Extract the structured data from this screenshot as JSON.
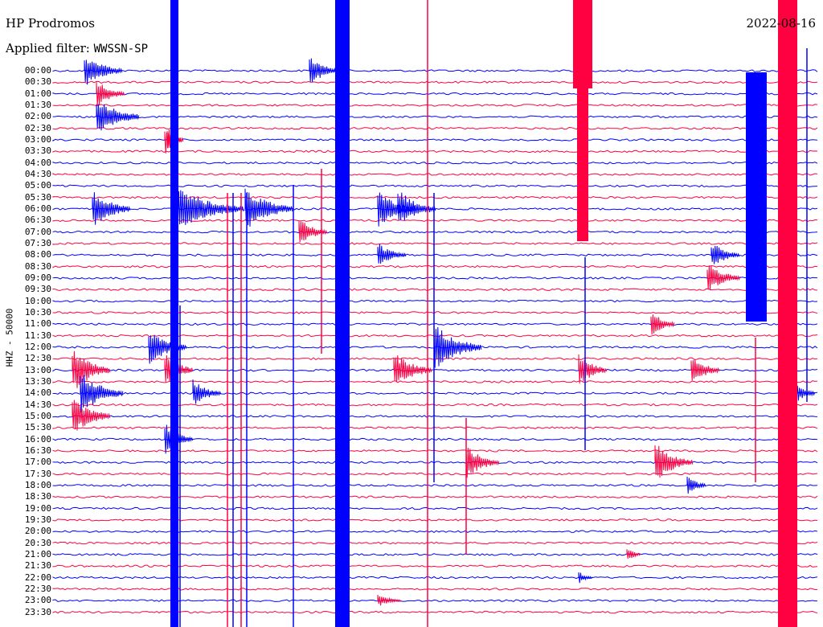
{
  "header": {
    "station": "HP Prodromos",
    "filter_label": "Applied filter:",
    "filter_value": "WWSSN-SP",
    "date": "2022-08-16",
    "channel": "HHZ - 50000"
  },
  "colors": {
    "trace_a": "#0000ff",
    "trace_b": "#ff0040",
    "text": "#000000"
  },
  "chart_data": {
    "type": "line",
    "title": "HP Prodromos",
    "ylabel": "HHZ - 50000",
    "row_labels": [
      "00:00",
      "00:30",
      "01:00",
      "01:30",
      "02:00",
      "02:30",
      "03:00",
      "03:30",
      "04:00",
      "04:30",
      "05:00",
      "05:30",
      "06:00",
      "06:30",
      "07:00",
      "07:30",
      "08:00",
      "08:30",
      "09:00",
      "09:30",
      "10:00",
      "10:30",
      "11:00",
      "11:30",
      "12:00",
      "12:30",
      "13:00",
      "13:30",
      "14:00",
      "14:30",
      "15:00",
      "15:30",
      "16:00",
      "16:30",
      "17:00",
      "17:30",
      "18:00",
      "18:30",
      "19:00",
      "19:30",
      "20:00",
      "20:30",
      "21:00",
      "21:30",
      "22:00",
      "22:30",
      "23:00",
      "23:30"
    ],
    "row_color_pattern": [
      "blue",
      "red"
    ],
    "x_range_minutes": [
      0,
      30
    ]
  }
}
